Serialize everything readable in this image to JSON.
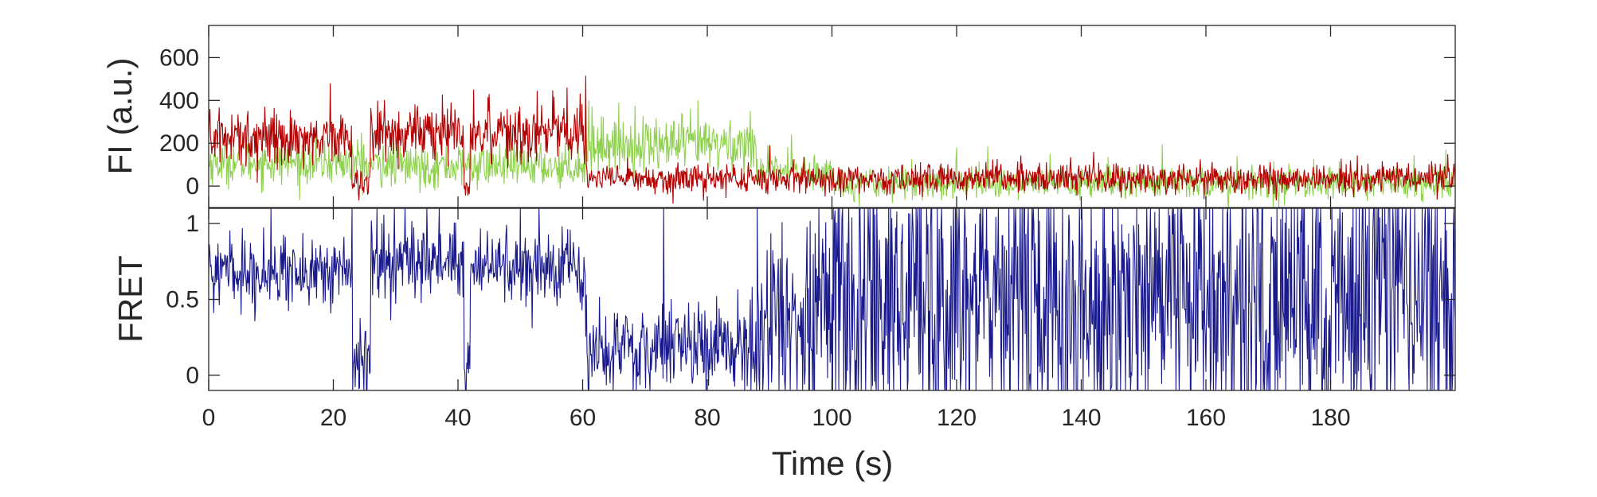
{
  "chart_data": [
    {
      "type": "line",
      "ylabel": "FI (a.u.)",
      "xlim": [
        0,
        200
      ],
      "ylim": [
        -100,
        750
      ],
      "xticks": [
        0,
        20,
        40,
        60,
        80,
        100,
        120,
        140,
        160,
        180
      ],
      "yticks": [
        0,
        200,
        400,
        600
      ],
      "grid": false,
      "colors": {
        "green": "#8fd14f",
        "red": "#b30000"
      },
      "series": [
        {
          "color": "#8fd14f",
          "segments": [
            {
              "x": [
                0,
                25
              ],
              "mean": 110,
              "noise": 50
            },
            {
              "x": [
                25,
                60.5
              ],
              "mean": 95,
              "noise": 50
            },
            {
              "x": [
                60.5,
                88
              ],
              "mean": 195,
              "noise": 65
            },
            {
              "x": [
                88,
                100
              ],
              "mean": 70,
              "noise": 45
            },
            {
              "x": [
                100,
                200
              ],
              "mean": 15,
              "noise": 38
            }
          ],
          "peaks": [
            [
              24.5,
              250
            ],
            [
              28,
              190
            ],
            [
              61,
              400
            ],
            [
              78.5,
              400
            ],
            [
              93.5,
              240
            ],
            [
              120,
              180
            ],
            [
              125,
              185
            ],
            [
              135,
              150
            ],
            [
              153,
              195
            ],
            [
              165,
              140
            ],
            [
              198.5,
              170
            ]
          ]
        },
        {
          "color": "#b30000",
          "segments": [
            {
              "x": [
                0,
                23
              ],
              "mean": 230,
              "noise": 65
            },
            {
              "x": [
                23,
                26
              ],
              "mean": 20,
              "noise": 40
            },
            {
              "x": [
                26,
                41
              ],
              "mean": 250,
              "noise": 65
            },
            {
              "x": [
                41,
                42
              ],
              "mean": 0,
              "noise": 30
            },
            {
              "x": [
                42,
                60.5
              ],
              "mean": 260,
              "noise": 70
            },
            {
              "x": [
                60.5,
                200
              ],
              "mean": 35,
              "noise": 35
            }
          ],
          "peaks": [
            [
              19.5,
              480
            ],
            [
              42.5,
              450
            ],
            [
              45,
              430
            ],
            [
              57.5,
              460
            ],
            [
              60.5,
              515
            ],
            [
              90,
              190
            ],
            [
              142,
              160
            ]
          ]
        }
      ]
    },
    {
      "type": "line",
      "xlabel": "Time (s)",
      "ylabel": "FRET",
      "xlim": [
        0,
        200
      ],
      "ylim": [
        -0.1,
        1.1
      ],
      "xticks": [
        0,
        20,
        40,
        60,
        80,
        100,
        120,
        140,
        160,
        180
      ],
      "xtick_labels": [
        "0",
        "20",
        "40",
        "60",
        "80",
        "100",
        "120",
        "140",
        "160",
        "180"
      ],
      "yticks": [
        0,
        0.5,
        1
      ],
      "ytick_labels": [
        "0",
        "0.5",
        "1"
      ],
      "grid": false,
      "series": [
        {
          "color": "#1a1a8c",
          "segments": [
            {
              "x": [
                0,
                23
              ],
              "mean": 0.68,
              "noise": 0.11
            },
            {
              "x": [
                23,
                26
              ],
              "mean": 0.08,
              "noise": 0.12
            },
            {
              "x": [
                26,
                41
              ],
              "mean": 0.74,
              "noise": 0.12
            },
            {
              "x": [
                41,
                42
              ],
              "mean": 0.0,
              "noise": 0.1
            },
            {
              "x": [
                42,
                60.5
              ],
              "mean": 0.72,
              "noise": 0.12
            },
            {
              "x": [
                60.5,
                88
              ],
              "mean": 0.18,
              "noise": 0.16
            },
            {
              "x": [
                88,
                100
              ],
              "mean": 0.35,
              "noise": 0.35
            },
            {
              "x": [
                100,
                200
              ],
              "mean": 0.5,
              "noise": 0.55
            }
          ],
          "peaks": [
            [
              10,
              1.1
            ],
            [
              23,
              1.1
            ],
            [
              27,
              1.1
            ],
            [
              31.5,
              1.1
            ],
            [
              35,
              1.1
            ],
            [
              37,
              1.1
            ],
            [
              50,
              1.1
            ],
            [
              53,
              1.1
            ],
            [
              73,
              1.1
            ],
            [
              88,
              1.1
            ]
          ]
        }
      ]
    }
  ]
}
